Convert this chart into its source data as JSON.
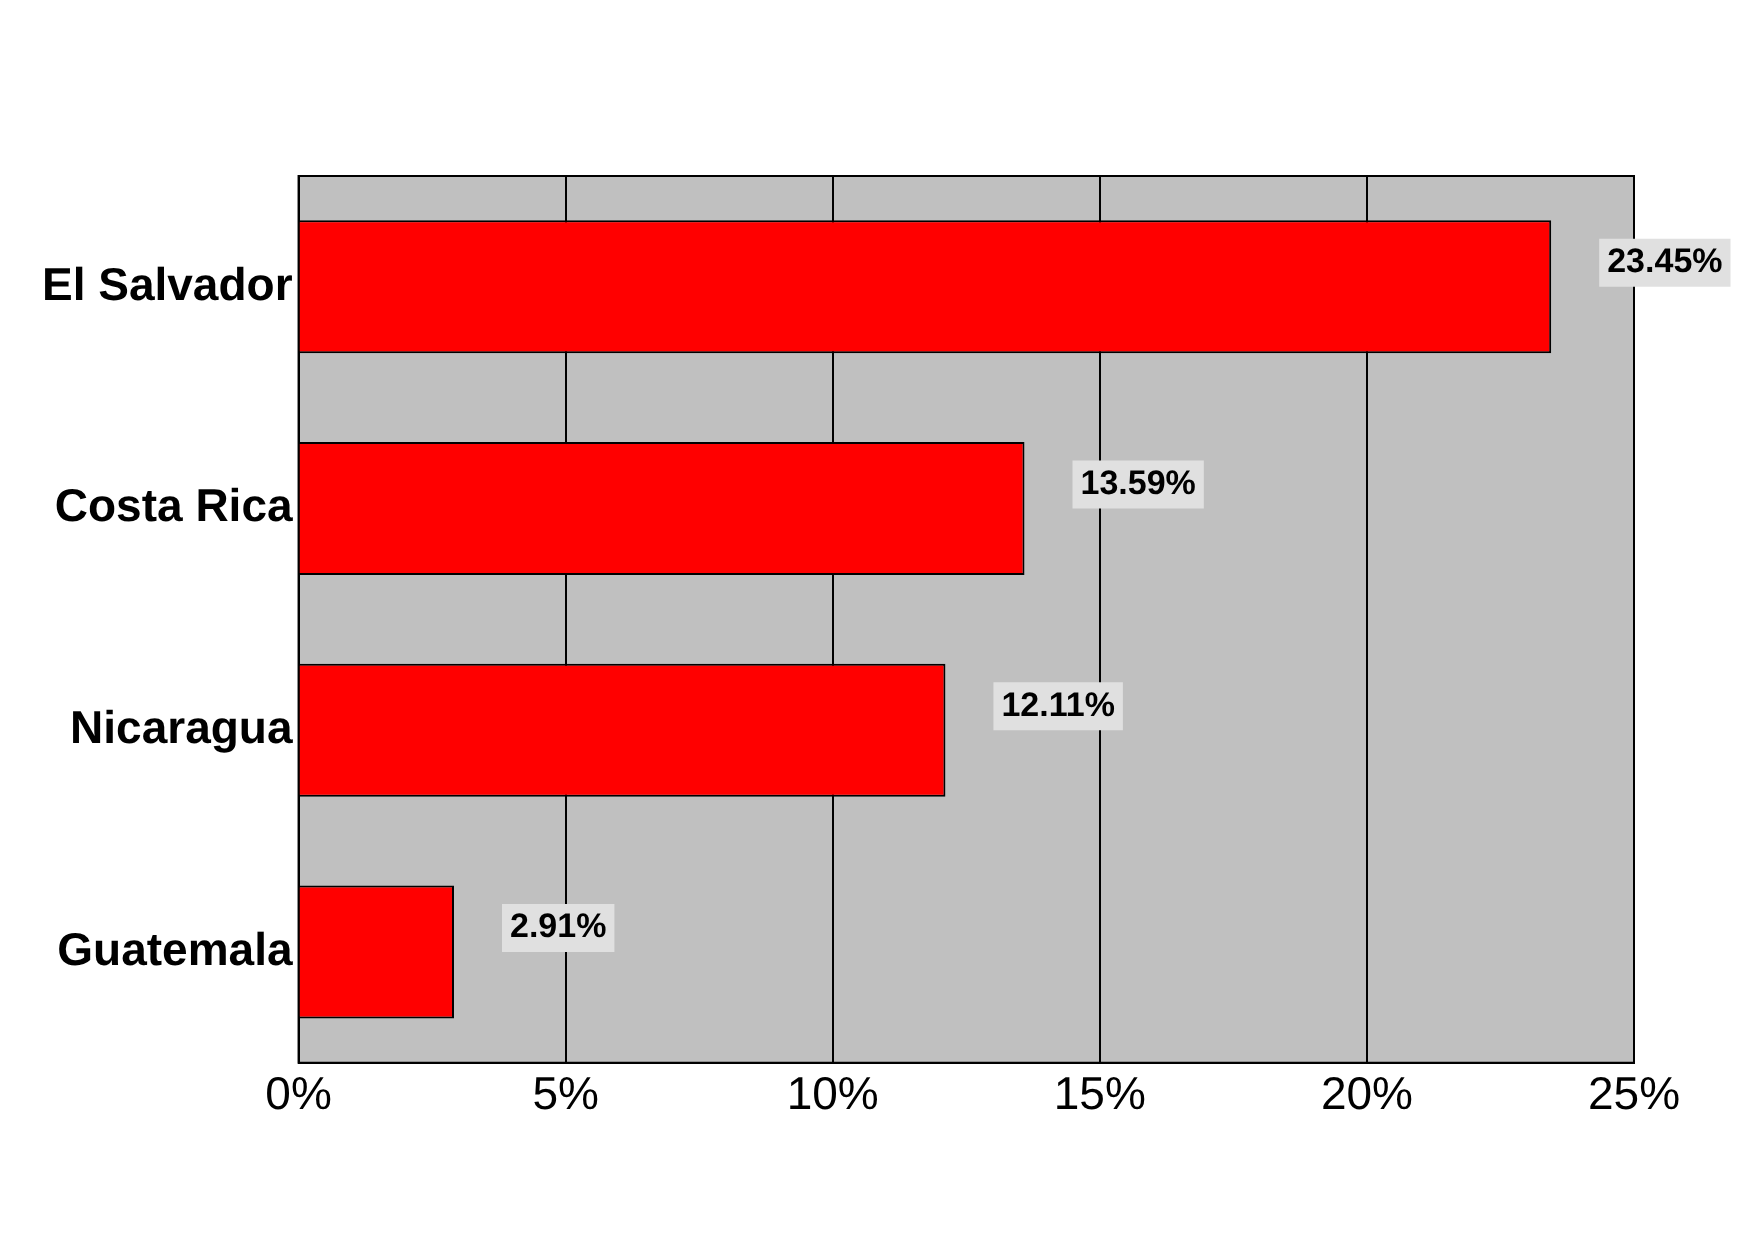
{
  "chart_data": {
    "type": "bar",
    "orientation": "horizontal",
    "categories": [
      "El Salvador",
      "Costa Rica",
      "Nicaragua",
      "Guatemala"
    ],
    "values": [
      23.45,
      13.59,
      12.11,
      2.91
    ],
    "value_labels": [
      "23.45%",
      "13.59%",
      "12.11%",
      "2.91%"
    ],
    "color": "#ff0000",
    "xlim": [
      0,
      25
    ],
    "xticks": [
      {
        "value": 0,
        "label": "0%"
      },
      {
        "value": 5,
        "label": "5%"
      },
      {
        "value": 10,
        "label": "10%"
      },
      {
        "value": 15,
        "label": "15%"
      },
      {
        "value": 20,
        "label": "20%"
      },
      {
        "value": 25,
        "label": "25%"
      }
    ],
    "grid": "x",
    "legend": false
  }
}
